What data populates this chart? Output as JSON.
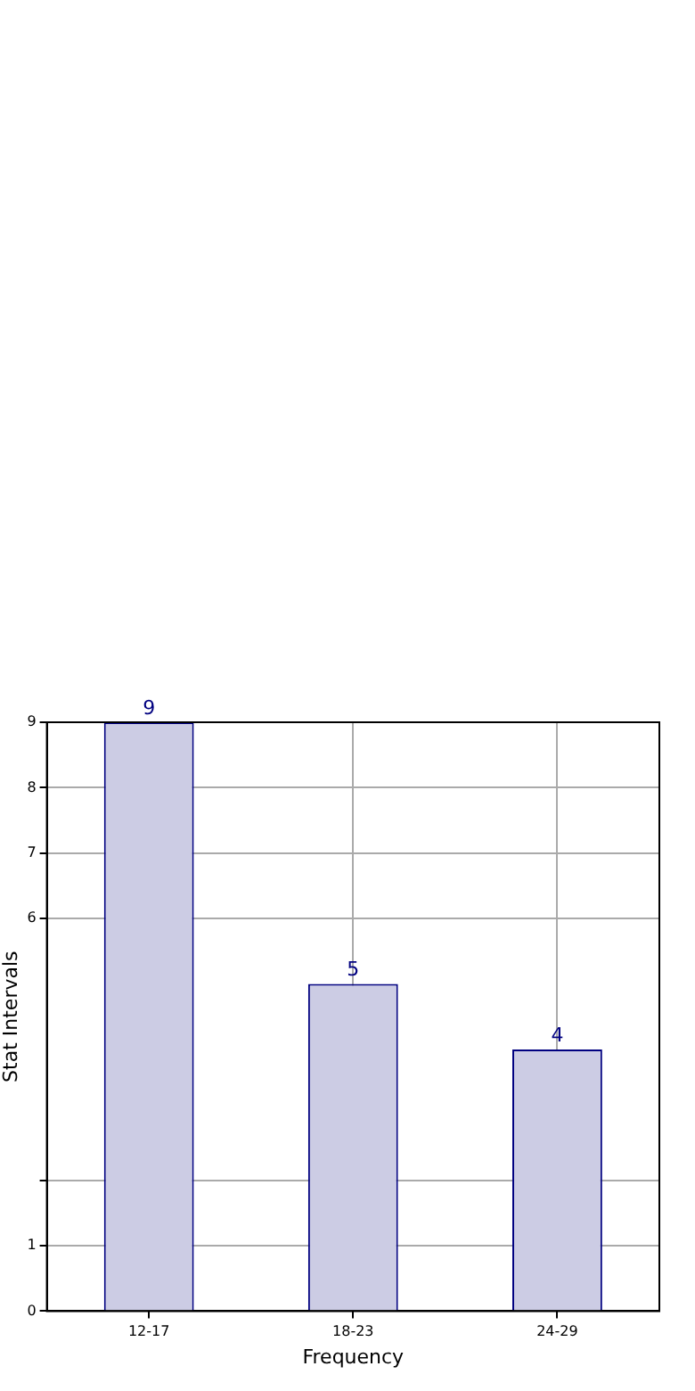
{
  "chart_data": {
    "type": "bar",
    "xlabel": "Frequency",
    "ylabel": "Stat Intervals",
    "categories": [
      "12-17",
      "18-23",
      "24-29"
    ],
    "values": [
      9,
      5,
      4
    ],
    "color": "#ccccE4",
    "ylim": [
      0,
      9
    ],
    "yticks": [
      0,
      1,
      {
        "value": 2,
        "label": null
      },
      6,
      7,
      8,
      9
    ],
    "grid": true,
    "data_labels": true
  }
}
